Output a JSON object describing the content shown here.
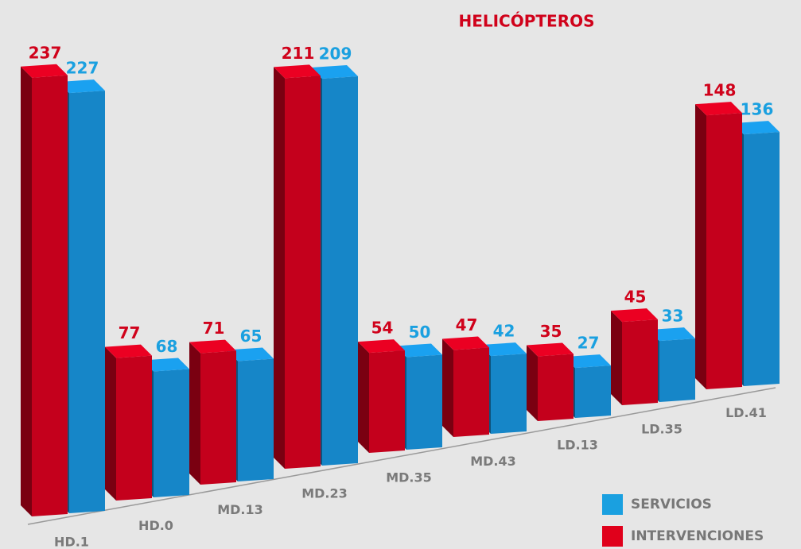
{
  "chart_data": {
    "type": "bar3d",
    "title": "HELICÓPTEROS",
    "categories": [
      "HD.1",
      "HD.0",
      "MD.13",
      "MD.23",
      "MD.35",
      "MD.43",
      "LD.13",
      "LD.35",
      "LD.41"
    ],
    "series": [
      {
        "name": "INTERVENCIONES",
        "color": "#c4001c",
        "values": [
          237,
          77,
          71,
          211,
          54,
          47,
          35,
          45,
          148
        ]
      },
      {
        "name": "SERVICIOS",
        "color": "#1686c8",
        "values": [
          227,
          68,
          65,
          209,
          50,
          42,
          27,
          33,
          136
        ]
      }
    ]
  }
}
